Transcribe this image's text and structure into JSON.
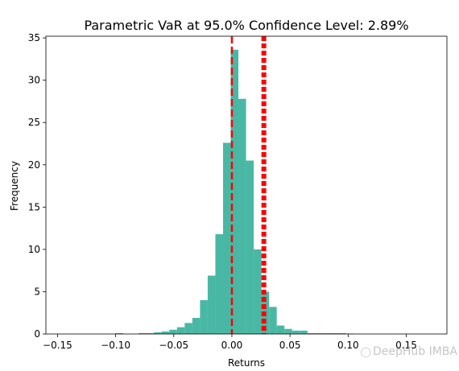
{
  "chart_data": {
    "type": "bar",
    "title": "Parametric VaR at 95.0% Confidence Level: 2.89%",
    "xlabel": "Returns",
    "ylabel": "Frequency",
    "xlim": [
      -0.16,
      0.185
    ],
    "ylim": [
      0,
      35.2
    ],
    "xticks": [
      -0.15,
      -0.1,
      -0.05,
      0.0,
      0.05,
      0.1,
      0.15
    ],
    "xtick_labels": [
      "−0.15",
      "−0.10",
      "−0.05",
      "0.00",
      "0.05",
      "0.10",
      "0.15"
    ],
    "yticks": [
      0,
      5,
      10,
      15,
      20,
      25,
      30,
      35
    ],
    "ytick_labels": [
      "0",
      "5",
      "10",
      "15",
      "20",
      "25",
      "30",
      "35"
    ],
    "bin_width": 0.0066,
    "bins": [
      {
        "x": -0.1001,
        "v": 0.1
      },
      {
        "x": -0.0802,
        "v": 0.1
      },
      {
        "x": -0.0736,
        "v": 0.1
      },
      {
        "x": -0.067,
        "v": 0.2
      },
      {
        "x": -0.0604,
        "v": 0.3
      },
      {
        "x": -0.0538,
        "v": 0.5
      },
      {
        "x": -0.0472,
        "v": 0.8
      },
      {
        "x": -0.0406,
        "v": 1.3
      },
      {
        "x": -0.034,
        "v": 1.9
      },
      {
        "x": -0.0274,
        "v": 4.0
      },
      {
        "x": -0.0208,
        "v": 6.9
      },
      {
        "x": -0.0142,
        "v": 11.8
      },
      {
        "x": -0.0076,
        "v": 22.6
      },
      {
        "x": -0.001,
        "v": 33.6
      },
      {
        "x": 0.0056,
        "v": 27.8
      },
      {
        "x": 0.0122,
        "v": 20.5
      },
      {
        "x": 0.0188,
        "v": 10.0
      },
      {
        "x": 0.0254,
        "v": 5.0
      },
      {
        "x": 0.032,
        "v": 3.2
      },
      {
        "x": 0.0386,
        "v": 1.0
      },
      {
        "x": 0.0452,
        "v": 0.6
      },
      {
        "x": 0.0518,
        "v": 0.4
      },
      {
        "x": 0.0584,
        "v": 0.4
      },
      {
        "x": 0.065,
        "v": 0.1
      },
      {
        "x": 0.0716,
        "v": 0.1
      },
      {
        "x": 0.0782,
        "v": 0.1
      },
      {
        "x": 0.0848,
        "v": 0.1
      },
      {
        "x": 0.0914,
        "v": 0.1
      },
      {
        "x": 0.098,
        "v": 0.05
      }
    ],
    "vlines": [
      {
        "x": 0.0,
        "style": "dashed",
        "color": "#ff0000"
      },
      {
        "x": 0.0275,
        "style": "dotted",
        "color": "#ff0000"
      }
    ],
    "bar_color": "#48b8a4",
    "grid": false
  },
  "watermark": "DeepHub IMBA"
}
